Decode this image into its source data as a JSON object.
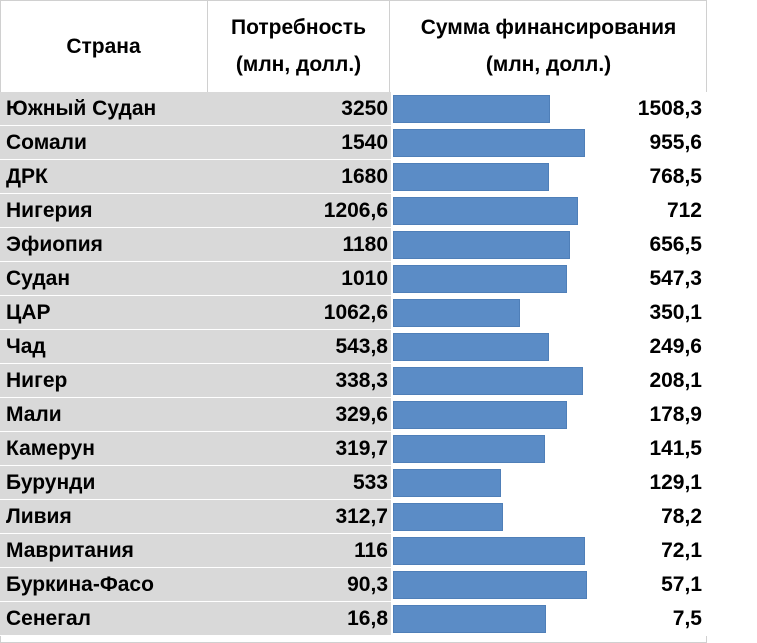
{
  "header": {
    "country": "Страна",
    "need_line1": "Потребность",
    "need_line2": "(млн, долл.)",
    "funding_line1": "Сумма финансирования",
    "funding_line2": "(млн, долл.)"
  },
  "chart_data": {
    "type": "table",
    "columns": [
      "Страна",
      "Потребность (млн, долл.)",
      "Сумма финансирования (млн, долл.)"
    ],
    "rows": [
      {
        "country": "Южный Судан",
        "need": "3250",
        "funding": "1508,3",
        "need_value": 3250,
        "funding_value": 1508.3
      },
      {
        "country": "Сомали",
        "need": "1540",
        "funding": "955,6",
        "need_value": 1540,
        "funding_value": 955.6
      },
      {
        "country": "ДРК",
        "need": "1680",
        "funding": "768,5",
        "need_value": 1680,
        "funding_value": 768.5
      },
      {
        "country": "Нигерия",
        "need": "1206,6",
        "funding": "712",
        "need_value": 1206.6,
        "funding_value": 712
      },
      {
        "country": "Эфиопия",
        "need": "1180",
        "funding": "656,5",
        "need_value": 1180,
        "funding_value": 656.5
      },
      {
        "country": "Судан",
        "need": "1010",
        "funding": "547,3",
        "need_value": 1010,
        "funding_value": 547.3
      },
      {
        "country": "ЦАР",
        "need": "1062,6",
        "funding": "350,1",
        "need_value": 1062.6,
        "funding_value": 350.1
      },
      {
        "country": "Чад",
        "need": "543,8",
        "funding": "249,6",
        "need_value": 543.8,
        "funding_value": 249.6
      },
      {
        "country": "Нигер",
        "need": "338,3",
        "funding": "208,1",
        "need_value": 338.3,
        "funding_value": 208.1
      },
      {
        "country": "Мали",
        "need": "329,6",
        "funding": "178,9",
        "need_value": 329.6,
        "funding_value": 178.9
      },
      {
        "country": "Камерун",
        "need": "319,7",
        "funding": "141,5",
        "need_value": 319.7,
        "funding_value": 141.5
      },
      {
        "country": "Бурунди",
        "need": "533",
        "funding": "129,1",
        "need_value": 533,
        "funding_value": 129.1
      },
      {
        "country": "Ливия",
        "need": "312,7",
        "funding": "78,2",
        "need_value": 312.7,
        "funding_value": 78.2
      },
      {
        "country": "Мавритания",
        "need": "116",
        "funding": "72,1",
        "need_value": 116,
        "funding_value": 72.1
      },
      {
        "country": "Буркина-Фасо",
        "need": "90,3",
        "funding": "57,1",
        "need_value": 90.3,
        "funding_value": 57.1
      },
      {
        "country": "Сенегал",
        "need": "16,8",
        "funding": "7,5",
        "need_value": 16.8,
        "funding_value": 7.5
      }
    ],
    "bar_color": "#5b8cc6",
    "row_shade_color": "#d9d9d9"
  }
}
